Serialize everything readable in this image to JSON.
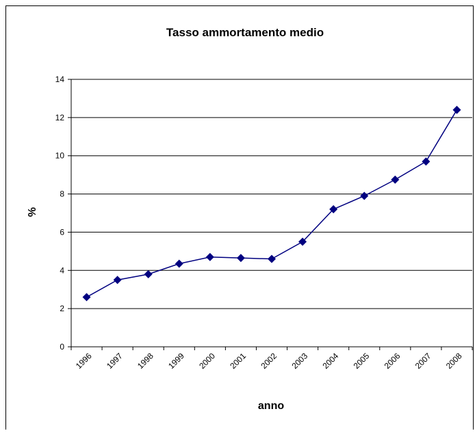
{
  "chart_data": {
    "type": "line",
    "title": "Tasso ammortamento medio",
    "x_label": "anno",
    "y_label": "%",
    "categories": [
      "1996",
      "1997",
      "1998",
      "1999",
      "2000",
      "2001",
      "2002",
      "2003",
      "2004",
      "2005",
      "2006",
      "2007",
      "2008"
    ],
    "series": [
      {
        "name": "Tasso ammortamento medio",
        "color": "#000080",
        "values": [
          2.6,
          3.5,
          3.8,
          4.35,
          4.7,
          4.65,
          4.6,
          5.5,
          7.2,
          7.9,
          8.75,
          9.7,
          12.4
        ]
      }
    ],
    "ylim": [
      0,
      14
    ],
    "yticks": [
      0,
      2,
      4,
      6,
      8,
      10,
      12,
      14
    ],
    "grid": true
  }
}
